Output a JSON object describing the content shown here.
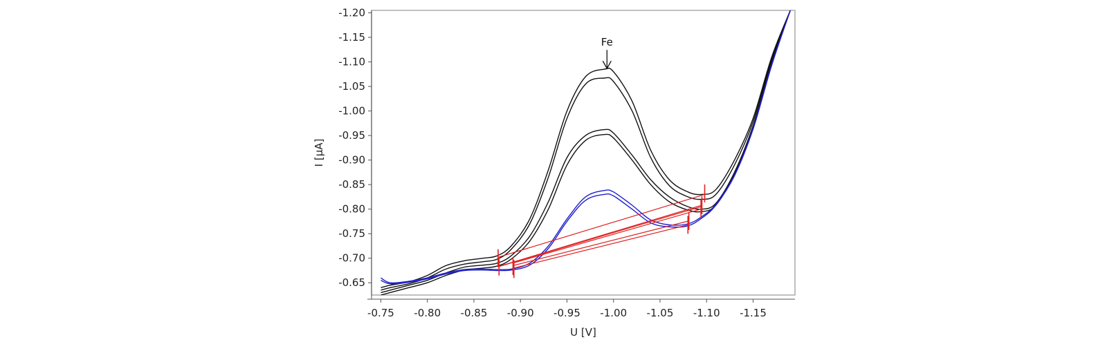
{
  "chart_data": {
    "type": "line",
    "xlabel": "U [V]",
    "ylabel": "I [µA]",
    "xlim": [
      -0.74,
      -1.195
    ],
    "ylim": [
      -0.625,
      -1.205
    ],
    "xticks": [
      {
        "value": -0.75,
        "label": "-0.75"
      },
      {
        "value": -0.8,
        "label": "-0.80"
      },
      {
        "value": -0.85,
        "label": "-0.85"
      },
      {
        "value": -0.9,
        "label": "-0.90"
      },
      {
        "value": -0.95,
        "label": "-0.95"
      },
      {
        "value": -1.0,
        "label": "-1.00"
      },
      {
        "value": -1.05,
        "label": "-1.05"
      },
      {
        "value": -1.1,
        "label": "-1.10"
      },
      {
        "value": -1.15,
        "label": "-1.15"
      }
    ],
    "yticks": [
      {
        "value": -0.65,
        "label": "-0.65"
      },
      {
        "value": -0.7,
        "label": "-0.70"
      },
      {
        "value": -0.75,
        "label": "-0.75"
      },
      {
        "value": -0.8,
        "label": "-0.80"
      },
      {
        "value": -0.85,
        "label": "-0.85"
      },
      {
        "value": -0.9,
        "label": "-0.90"
      },
      {
        "value": -0.95,
        "label": "-0.95"
      },
      {
        "value": -1.0,
        "label": "-1.00"
      },
      {
        "value": -1.05,
        "label": "-1.05"
      },
      {
        "value": -1.1,
        "label": "-1.10"
      },
      {
        "value": -1.15,
        "label": "-1.15"
      },
      {
        "value": -1.2,
        "label": "-1.20"
      }
    ],
    "grid": false,
    "legend": "none",
    "colors": {
      "black_series": "#111111",
      "blue_series": "#1f1fcc",
      "baseline": "#e02020",
      "frame": "#aaaaaa"
    },
    "series": [
      {
        "color": "#111111",
        "x": [
          -0.75,
          -0.76,
          -0.78,
          -0.8,
          -0.82,
          -0.84,
          -0.86,
          -0.875,
          -0.89,
          -0.91,
          -0.93,
          -0.95,
          -0.97,
          -0.99,
          -1.0,
          -1.02,
          -1.04,
          -1.06,
          -1.08,
          -1.095,
          -1.11,
          -1.13,
          -1.15,
          -1.17,
          -1.19
        ],
        "y": [
          -0.64,
          -0.645,
          -0.652,
          -0.665,
          -0.685,
          -0.695,
          -0.7,
          -0.705,
          -0.725,
          -0.78,
          -0.88,
          -1.0,
          -1.07,
          -1.085,
          -1.08,
          -1.02,
          -0.92,
          -0.86,
          -0.835,
          -0.83,
          -0.84,
          -0.9,
          -0.985,
          -1.11,
          -1.205
        ]
      },
      {
        "color": "#111111",
        "x": [
          -0.75,
          -0.76,
          -0.78,
          -0.8,
          -0.82,
          -0.84,
          -0.86,
          -0.875,
          -0.89,
          -0.91,
          -0.93,
          -0.95,
          -0.97,
          -0.99,
          -1.0,
          -1.02,
          -1.04,
          -1.06,
          -1.08,
          -1.095,
          -1.11,
          -1.13,
          -1.15,
          -1.17,
          -1.19
        ],
        "y": [
          -0.635,
          -0.64,
          -0.648,
          -0.66,
          -0.678,
          -0.688,
          -0.693,
          -0.698,
          -0.718,
          -0.77,
          -0.865,
          -0.985,
          -1.055,
          -1.067,
          -1.06,
          -1.0,
          -0.905,
          -0.848,
          -0.825,
          -0.82,
          -0.83,
          -0.89,
          -0.978,
          -1.105,
          -1.205
        ]
      },
      {
        "color": "#111111",
        "x": [
          -0.75,
          -0.76,
          -0.78,
          -0.8,
          -0.82,
          -0.84,
          -0.86,
          -0.875,
          -0.89,
          -0.91,
          -0.93,
          -0.95,
          -0.97,
          -0.99,
          -1.0,
          -1.02,
          -1.04,
          -1.06,
          -1.08,
          -1.095,
          -1.11,
          -1.13,
          -1.15,
          -1.17,
          -1.19
        ],
        "y": [
          -0.63,
          -0.635,
          -0.645,
          -0.655,
          -0.67,
          -0.682,
          -0.686,
          -0.69,
          -0.705,
          -0.745,
          -0.815,
          -0.905,
          -0.95,
          -0.962,
          -0.955,
          -0.91,
          -0.86,
          -0.825,
          -0.805,
          -0.8,
          -0.812,
          -0.875,
          -0.97,
          -1.1,
          -1.205
        ]
      },
      {
        "color": "#111111",
        "x": [
          -0.75,
          -0.76,
          -0.78,
          -0.8,
          -0.82,
          -0.84,
          -0.86,
          -0.875,
          -0.89,
          -0.91,
          -0.93,
          -0.95,
          -0.97,
          -0.99,
          -1.0,
          -1.02,
          -1.04,
          -1.06,
          -1.08,
          -1.095,
          -1.11,
          -1.13,
          -1.15,
          -1.17,
          -1.19
        ],
        "y": [
          -0.625,
          -0.63,
          -0.64,
          -0.65,
          -0.665,
          -0.676,
          -0.68,
          -0.684,
          -0.698,
          -0.735,
          -0.8,
          -0.89,
          -0.94,
          -0.952,
          -0.945,
          -0.9,
          -0.85,
          -0.815,
          -0.798,
          -0.795,
          -0.808,
          -0.872,
          -0.968,
          -1.098,
          -1.205
        ]
      },
      {
        "color": "#1f1fcc",
        "x": [
          -0.75,
          -0.76,
          -0.78,
          -0.8,
          -0.82,
          -0.84,
          -0.86,
          -0.875,
          -0.89,
          -0.91,
          -0.93,
          -0.95,
          -0.97,
          -0.99,
          -1.0,
          -1.02,
          -1.04,
          -1.06,
          -1.08,
          -1.095,
          -1.11,
          -1.13,
          -1.15,
          -1.17,
          -1.19
        ],
        "y": [
          -0.66,
          -0.65,
          -0.653,
          -0.66,
          -0.67,
          -0.677,
          -0.678,
          -0.677,
          -0.678,
          -0.69,
          -0.725,
          -0.78,
          -0.825,
          -0.838,
          -0.835,
          -0.808,
          -0.778,
          -0.768,
          -0.77,
          -0.785,
          -0.81,
          -0.87,
          -0.965,
          -1.095,
          -1.205
        ]
      },
      {
        "color": "#1f1fcc",
        "x": [
          -0.75,
          -0.76,
          -0.78,
          -0.8,
          -0.82,
          -0.84,
          -0.86,
          -0.875,
          -0.89,
          -0.91,
          -0.93,
          -0.95,
          -0.97,
          -0.99,
          -1.0,
          -1.02,
          -1.04,
          -1.06,
          -1.08,
          -1.095,
          -1.11,
          -1.13,
          -1.15,
          -1.17,
          -1.19
        ],
        "y": [
          -0.655,
          -0.648,
          -0.651,
          -0.658,
          -0.668,
          -0.675,
          -0.676,
          -0.675,
          -0.676,
          -0.686,
          -0.72,
          -0.775,
          -0.818,
          -0.83,
          -0.827,
          -0.8,
          -0.772,
          -0.764,
          -0.766,
          -0.782,
          -0.808,
          -0.868,
          -0.963,
          -1.093,
          -1.205
        ]
      }
    ],
    "baselines": [
      {
        "color": "#e02020",
        "x": [
          -0.876,
          -1.098
        ],
        "y": [
          -0.702,
          -0.83
        ]
      },
      {
        "color": "#e02020",
        "x": [
          -0.876,
          -1.095
        ],
        "y": [
          -0.683,
          -0.808
        ]
      },
      {
        "color": "#e02020",
        "x": [
          -0.877,
          -1.094
        ],
        "y": [
          -0.683,
          -0.805
        ]
      },
      {
        "color": "#e02020",
        "x": [
          -0.892,
          -1.094
        ],
        "y": [
          -0.69,
          -0.8
        ]
      },
      {
        "color": "#e02020",
        "x": [
          -0.892,
          -1.081
        ],
        "y": [
          -0.685,
          -0.776
        ]
      },
      {
        "color": "#e02020",
        "x": [
          -0.893,
          -1.08
        ],
        "y": [
          -0.68,
          -0.768
        ]
      }
    ],
    "boundary_markers": [
      {
        "x": -0.876,
        "y": -0.7
      },
      {
        "x": -0.877,
        "y": -0.683
      },
      {
        "x": -0.892,
        "y": -0.684
      },
      {
        "x": -0.893,
        "y": -0.678
      },
      {
        "x": -1.098,
        "y": -0.832
      },
      {
        "x": -1.095,
        "y": -0.808
      },
      {
        "x": -1.094,
        "y": -0.8
      },
      {
        "x": -1.081,
        "y": -0.776
      },
      {
        "x": -1.08,
        "y": -0.768
      }
    ],
    "annotations": [
      {
        "text": "Fe",
        "x": -0.993,
        "y": -1.085
      }
    ]
  }
}
